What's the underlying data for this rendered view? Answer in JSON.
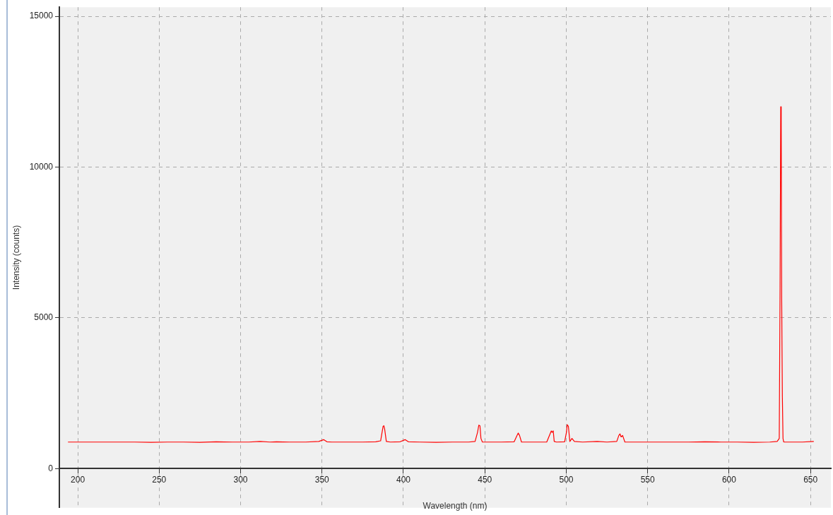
{
  "chart_data": {
    "type": "line",
    "xlabel": "Wavelength (nm)",
    "ylabel": "Intensity (counts)",
    "xlim": [
      188.7,
      662.5
    ],
    "ylim": [
      -1300,
      15300
    ],
    "xticks": [
      200,
      250,
      300,
      350,
      400,
      450,
      500,
      550,
      600,
      650
    ],
    "yticks": [
      0,
      5000,
      10000,
      15000
    ],
    "grid": true,
    "marker": "none",
    "line_style": "solid",
    "legend": false,
    "series": [
      {
        "color": "#ff0000",
        "x": [
          194,
          205,
          215,
          225,
          235,
          245,
          255,
          265,
          275,
          285,
          295,
          305,
          312,
          318,
          322,
          330,
          340,
          348,
          351,
          353,
          356,
          365,
          375,
          383,
          386,
          387.5,
          388,
          388.5,
          389.5,
          392,
          398,
          401,
          403,
          410,
          420,
          430,
          440,
          444,
          445.5,
          446.3,
          447,
          447.6,
          448.5,
          452,
          460,
          468,
          469.8,
          470.5,
          471.3,
          472.5,
          480,
          488,
          490.8,
          491.3,
          492,
          492.6,
          494,
          499,
          500.1,
          500.6,
          501.3,
          502.2,
          503.5,
          505,
          510,
          519,
          525,
          531,
          532.3,
          533,
          533.7,
          534.6,
          536,
          545,
          555,
          565,
          575,
          585,
          595,
          605,
          615,
          625,
          629.5,
          630.8,
          631.3,
          631.7,
          632,
          632.3,
          632.7,
          633.1,
          633.5,
          634,
          638,
          645,
          652
        ],
        "values": [
          880,
          880,
          880,
          880,
          880,
          870,
          880,
          880,
          870,
          890,
          880,
          880,
          900,
          880,
          890,
          880,
          880,
          900,
          960,
          890,
          880,
          880,
          880,
          890,
          920,
          1400,
          1420,
          1300,
          900,
          880,
          890,
          960,
          890,
          880,
          870,
          880,
          880,
          900,
          1200,
          1440,
          1420,
          1000,
          880,
          880,
          880,
          890,
          1100,
          1180,
          1100,
          880,
          880,
          880,
          1250,
          1200,
          1250,
          900,
          880,
          890,
          1200,
          1460,
          1400,
          900,
          1000,
          900,
          880,
          900,
          880,
          900,
          1100,
          1150,
          1050,
          1100,
          880,
          880,
          880,
          880,
          880,
          890,
          880,
          880,
          870,
          880,
          900,
          1000,
          6000,
          12000,
          11500,
          5600,
          2400,
          1000,
          890,
          880,
          880,
          880,
          900
        ]
      }
    ]
  }
}
